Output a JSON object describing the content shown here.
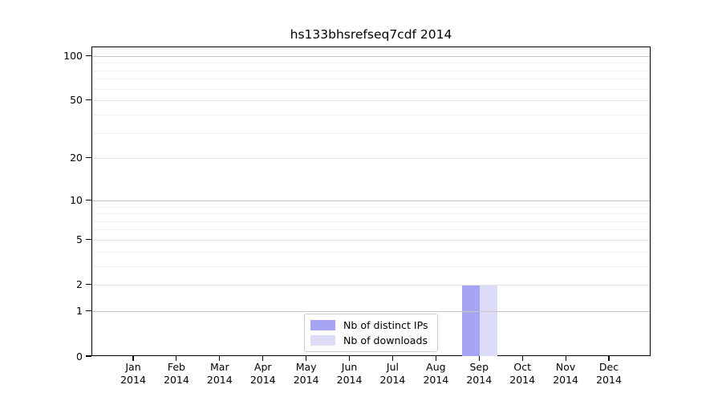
{
  "title": "hs133bhsrefseq7cdf 2014",
  "chart_data": {
    "type": "bar",
    "title": "hs133bhsrefseq7cdf 2014",
    "categories": [
      "Jan",
      "Feb",
      "Mar",
      "Apr",
      "May",
      "Jun",
      "Jul",
      "Aug",
      "Sep",
      "Oct",
      "Nov",
      "Dec"
    ],
    "xtick_year": "2014",
    "series": [
      {
        "name": "Nb of distinct IPs",
        "color": "#a5a5f3",
        "values": [
          0,
          0,
          0,
          0,
          0,
          0,
          0,
          0,
          2,
          0,
          0,
          0
        ]
      },
      {
        "name": "Nb of downloads",
        "color": "#dcdcf9",
        "values": [
          0,
          0,
          0,
          0,
          0,
          0,
          0,
          0,
          2,
          0,
          0,
          0
        ]
      }
    ],
    "yscale": "log1p",
    "ylim": [
      0,
      115
    ],
    "yticks": [
      0,
      1,
      2,
      5,
      10,
      20,
      50,
      100
    ],
    "gridlines": {
      "major": [
        1,
        10,
        100
      ],
      "mid": [
        2,
        5,
        20,
        50
      ],
      "minor": [
        3,
        4,
        6,
        7,
        8,
        9,
        30,
        40,
        60,
        70,
        80,
        90
      ]
    },
    "grid": true,
    "legend_position": "inside-lower-center"
  },
  "colors": {
    "bar_distinct_ips": "#a5a5f3",
    "bar_downloads": "#dcdcf9",
    "grid_major": "#c6c6c6",
    "grid_mid": "#e2e2e2",
    "grid_minor": "#f1f1f1",
    "axis": "#000000",
    "background": "#ffffff",
    "legend_border": "#cccccc"
  }
}
